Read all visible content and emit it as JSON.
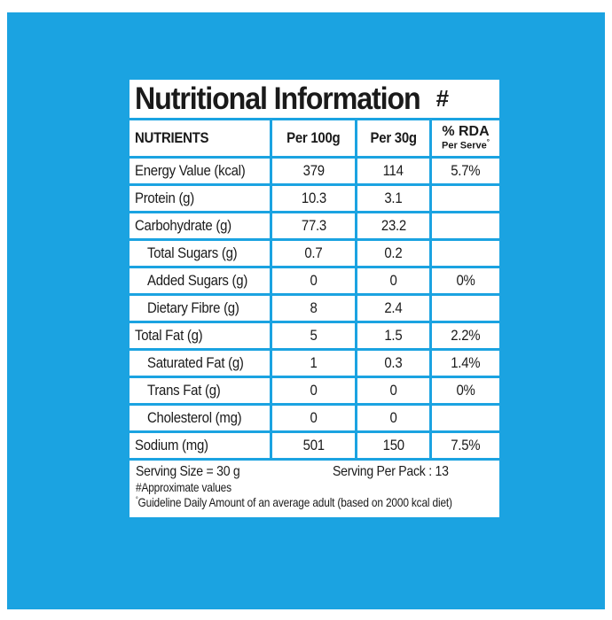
{
  "title": "Nutritional Information",
  "title_mark": "#",
  "headers": {
    "nutrients": "NUTRIENTS",
    "per100": "Per 100g",
    "per30": "Per 30g",
    "rda": "% RDA",
    "rda_sub": "Per Serve",
    "rda_mark": "°"
  },
  "rows": [
    {
      "name": "Energy Value (kcal)",
      "sub": false,
      "per100": "379",
      "per30": "114",
      "rda": "5.7%"
    },
    {
      "name": "Protein (g)",
      "sub": false,
      "per100": "10.3",
      "per30": "3.1",
      "rda": ""
    },
    {
      "name": "Carbohydrate (g)",
      "sub": false,
      "per100": "77.3",
      "per30": "23.2",
      "rda": ""
    },
    {
      "name": "Total Sugars (g)",
      "sub": true,
      "per100": "0.7",
      "per30": "0.2",
      "rda": ""
    },
    {
      "name": "Added Sugars (g)",
      "sub": true,
      "per100": "0",
      "per30": "0",
      "rda": "0%"
    },
    {
      "name": "Dietary Fibre (g)",
      "sub": true,
      "per100": "8",
      "per30": "2.4",
      "rda": ""
    },
    {
      "name": "Total Fat (g)",
      "sub": false,
      "per100": "5",
      "per30": "1.5",
      "rda": "2.2%"
    },
    {
      "name": "Saturated Fat (g)",
      "sub": true,
      "per100": "1",
      "per30": "0.3",
      "rda": "1.4%"
    },
    {
      "name": "Trans Fat (g)",
      "sub": true,
      "per100": "0",
      "per30": "0",
      "rda": "0%"
    },
    {
      "name": "Cholesterol (mg)",
      "sub": true,
      "per100": "0",
      "per30": "0",
      "rda": ""
    },
    {
      "name": "Sodium (mg)",
      "sub": false,
      "per100": "501",
      "per30": "150",
      "rda": "7.5%"
    }
  ],
  "footer": {
    "serving_size": "Serving Size = 30 g",
    "serving_per_pack": "Serving Per Pack :  13",
    "approx": "#Approximate values",
    "gda_mark": "°",
    "gda": "Guideline Daily Amount of an average adult (based on 2000 kcal diet)"
  },
  "colors": {
    "background": "#1ba3e1",
    "panel": "#ffffff",
    "text": "#1a1a1a"
  }
}
